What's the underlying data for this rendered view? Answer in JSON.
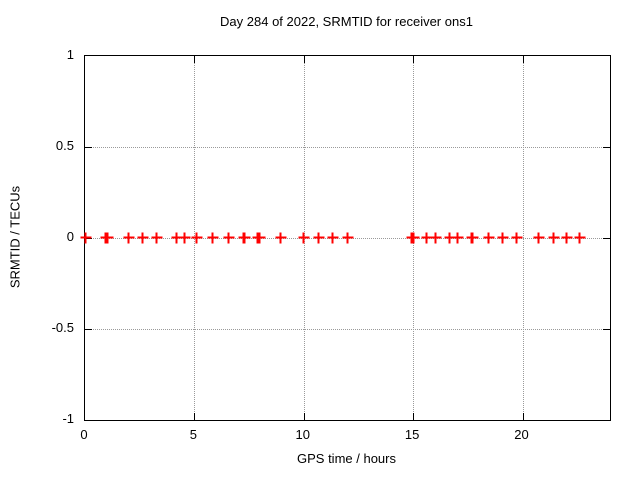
{
  "chart": {
    "title": "Day 284 of 2022, SRMTID for receiver ons1",
    "xlabel": "GPS time / hours",
    "ylabel": "SRMTID / TECUs"
  },
  "colors": {
    "marker": "#ff0000",
    "frame": "#000000",
    "grid": "#9a9a9a",
    "background": "#ffffff"
  },
  "chart_data": {
    "type": "scatter",
    "title": "Day 284 of 2022, SRMTID for receiver ons1",
    "xlabel": "GPS time / hours",
    "ylabel": "SRMTID / TECUs",
    "xlim": [
      0,
      24
    ],
    "ylim": [
      -1,
      1
    ],
    "x_ticks": [
      0,
      5,
      10,
      15,
      20
    ],
    "y_ticks": [
      -1,
      -0.5,
      0,
      0.5,
      1
    ],
    "grid": true,
    "legend": "none",
    "marker_style": "plus",
    "marker_color": "#ff0000",
    "series": [
      {
        "name": "SRMTID",
        "points": [
          [
            0.05,
            0
          ],
          [
            0.98,
            0
          ],
          [
            1.03,
            0
          ],
          [
            2.0,
            0
          ],
          [
            2.65,
            0
          ],
          [
            3.3,
            0
          ],
          [
            4.2,
            0
          ],
          [
            4.55,
            0
          ],
          [
            5.1,
            0
          ],
          [
            5.85,
            0
          ],
          [
            6.6,
            0
          ],
          [
            7.28,
            0
          ],
          [
            7.33,
            0
          ],
          [
            7.93,
            0
          ],
          [
            7.98,
            0
          ],
          [
            8.95,
            0
          ],
          [
            10.0,
            0
          ],
          [
            10.7,
            0
          ],
          [
            11.35,
            0
          ],
          [
            12.0,
            0
          ],
          [
            14.97,
            0
          ],
          [
            15.02,
            0
          ],
          [
            15.65,
            0
          ],
          [
            16.05,
            0
          ],
          [
            16.7,
            0
          ],
          [
            17.05,
            0
          ],
          [
            17.68,
            0
          ],
          [
            17.73,
            0
          ],
          [
            18.45,
            0
          ],
          [
            19.1,
            0
          ],
          [
            19.75,
            0
          ],
          [
            20.75,
            0
          ],
          [
            21.45,
            0
          ],
          [
            22.05,
            0
          ],
          [
            22.65,
            0
          ]
        ]
      }
    ]
  }
}
